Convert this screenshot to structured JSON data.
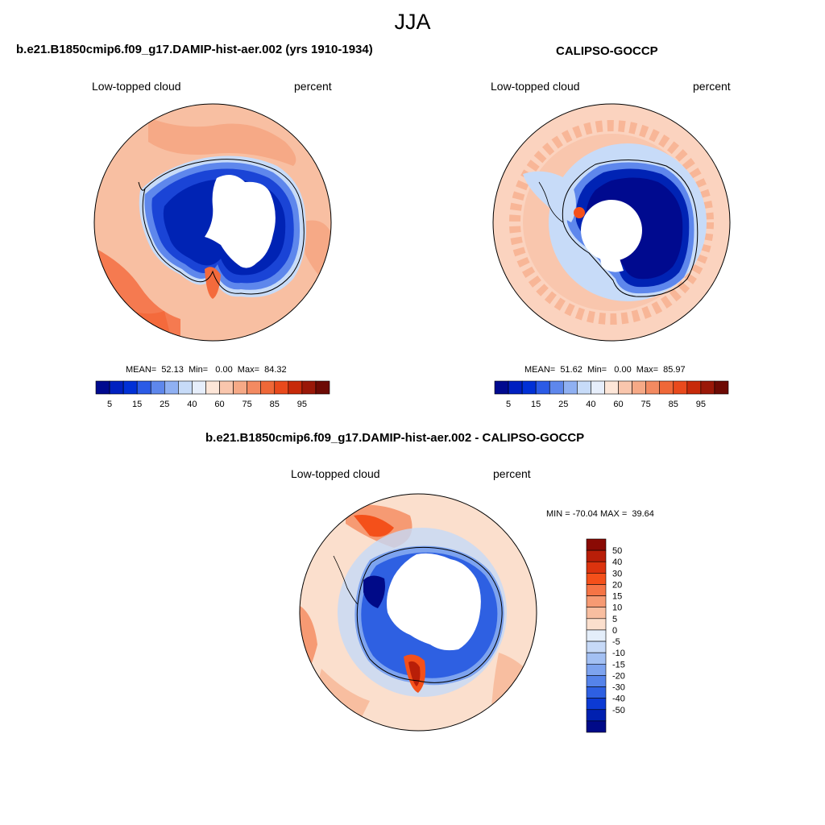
{
  "main_title": "JJA",
  "panels": [
    {
      "title": "b.e21.B1850cmip6.f09_g17.DAMIP-hist-aer.002 (yrs 1910-1934)",
      "variable": "Low-topped cloud",
      "units": "percent",
      "stats": "MEAN=  52.13  Min=   0.00  Max=  84.32"
    },
    {
      "title": "CALIPSO-GOCCP",
      "variable": "Low-topped cloud",
      "units": "percent",
      "stats": "MEAN=  51.62  Min=   0.00  Max=  85.97"
    },
    {
      "title": "b.e21.B1850cmip6.f09_g17.DAMIP-hist-aer.002 - CALIPSO-GOCCP",
      "variable": "Low-topped cloud",
      "units": "percent",
      "stats": "MIN = -70.04 MAX =  39.64"
    }
  ],
  "colorbar_abs": {
    "colors": [
      "#000a8f",
      "#0020c0",
      "#0030d6",
      "#2b5be6",
      "#5e87ec",
      "#8fb0f2",
      "#c7dbf8",
      "#e6eefb",
      "#fde6d8",
      "#f9c6ad",
      "#f6a986",
      "#f38a61",
      "#ef6838",
      "#e94a1c",
      "#c72a0a",
      "#9a1808",
      "#6d0a04"
    ],
    "tick_labels": [
      "5",
      "15",
      "25",
      "40",
      "60",
      "75",
      "85",
      "95"
    ]
  },
  "colorbar_diff": {
    "colors_top_to_bottom": [
      "#8a0a04",
      "#b81e08",
      "#dc330e",
      "#f4501a",
      "#f57445",
      "#f69a73",
      "#f8bea0",
      "#fbdfcd",
      "#e4eefa",
      "#c6d9f7",
      "#a3c0f3",
      "#7da3ef",
      "#5583ea",
      "#2e60e2",
      "#0c3ad4",
      "#0020b0",
      "#000a88"
    ],
    "tick_labels": [
      "50",
      "40",
      "30",
      "20",
      "15",
      "10",
      "5",
      "0",
      "-5",
      "-10",
      "-15",
      "-20",
      "-30",
      "-40",
      "-50"
    ]
  }
}
